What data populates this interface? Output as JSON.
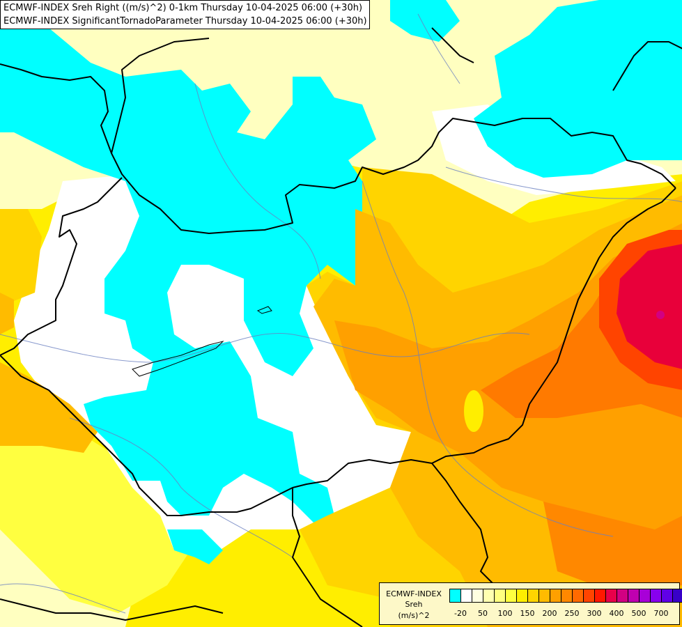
{
  "title_lines": [
    "ECMWF-INDEX Sreh Right ((m/s)^2) 0-1km Thursday 10-04-2025 06:00 (+30h)",
    "ECMWF-INDEX SignificantTornadoParameter Thursday 10-04-2025 06:00 (+30h)"
  ],
  "legend": {
    "title": "ECMWF-INDEX",
    "param": "Sreh",
    "unit": "(m/s)^2",
    "colors": [
      "#00ffff",
      "#ffffff",
      "#ffffe0",
      "#ffffb0",
      "#ffff80",
      "#ffff40",
      "#ffee00",
      "#ffd400",
      "#ffbb00",
      "#ffa000",
      "#ff8800",
      "#ff6a00",
      "#ff4400",
      "#ff1800",
      "#e8004a",
      "#d20082",
      "#c000b0",
      "#a800d8",
      "#8800ee",
      "#6000e6",
      "#3800c8",
      "#1a00a0"
    ],
    "ticks": [
      "-20",
      "50",
      "100",
      "150",
      "200",
      "250",
      "300",
      "400",
      "500",
      "700"
    ]
  },
  "fill_colors": {
    "cyan": "#00ffff",
    "white": "#ffffff",
    "pale_yellow": "#ffffc0",
    "yellow": "#ffff40",
    "bright_yellow": "#ffee00",
    "gold": "#ffd400",
    "orange": "#ffbb00",
    "dark_orange": "#ffa000",
    "orange_red": "#ff7a00",
    "red": "#ff4400",
    "crimson": "#e8003a",
    "magenta": "#d20082"
  }
}
